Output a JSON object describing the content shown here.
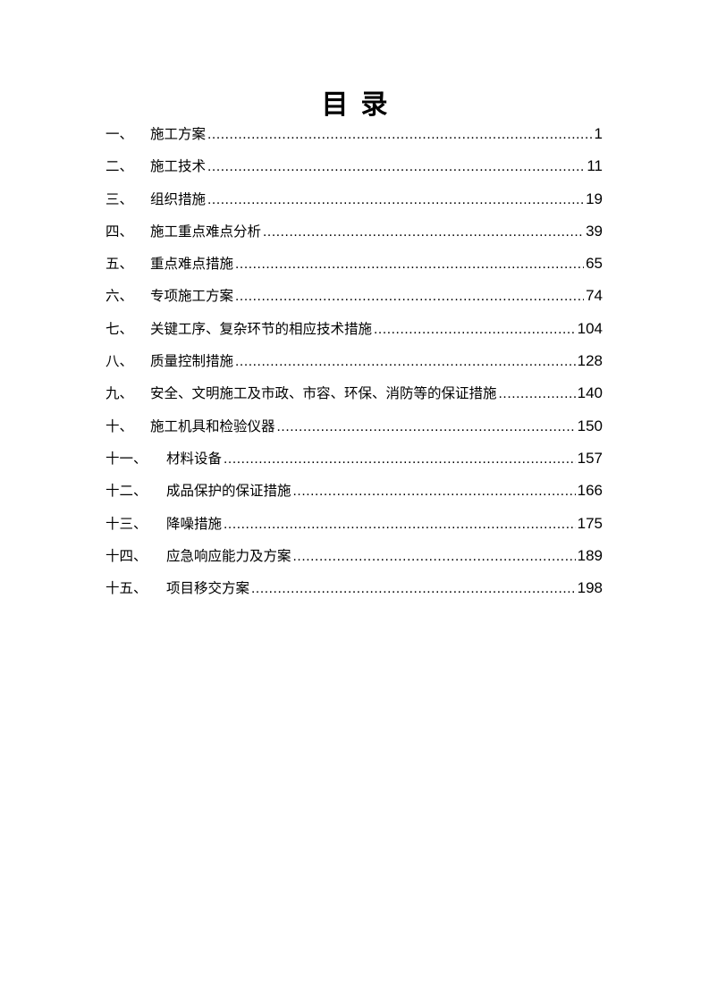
{
  "title": "目录",
  "entries": [
    {
      "num": "一、",
      "label": "施工方案",
      "page": "1"
    },
    {
      "num": "二、",
      "label": "施工技术",
      "page": "11"
    },
    {
      "num": "三、",
      "label": "组织措施",
      "page": "19"
    },
    {
      "num": "四、",
      "label": "施工重点难点分析",
      "page": "39"
    },
    {
      "num": "五、",
      "label": "重点难点措施",
      "page": "65"
    },
    {
      "num": "六、",
      "label": "专项施工方案",
      "page": "74"
    },
    {
      "num": "七、",
      "label": "关键工序、复杂环节的相应技术措施",
      "page": "104"
    },
    {
      "num": "八、",
      "label": "质量控制措施",
      "page": "128"
    },
    {
      "num": "九、",
      "label": "安全、文明施工及市政、市容、环保、消防等的保证措施",
      "page": "140"
    },
    {
      "num": "十、",
      "label": "施工机具和检验仪器",
      "page": "150"
    },
    {
      "num": "十一、",
      "label": "材料设备",
      "page": "157"
    },
    {
      "num": "十二、",
      "label": "成品保护的保证措施",
      "page": "166"
    },
    {
      "num": "十三、",
      "label": "降噪措施",
      "page": "175"
    },
    {
      "num": "十四、",
      "label": "应急响应能力及方案",
      "page": "189"
    },
    {
      "num": "十五、",
      "label": "项目移交方案",
      "page": "198"
    }
  ]
}
